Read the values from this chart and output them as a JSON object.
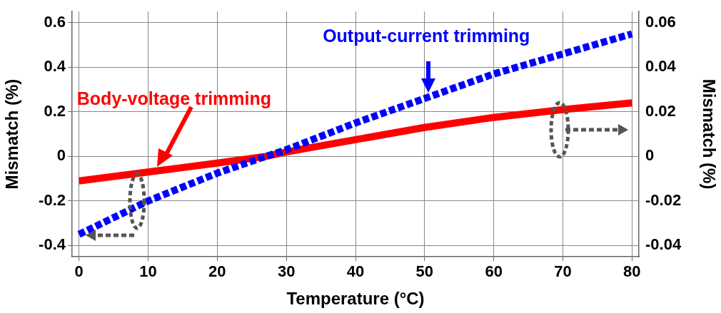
{
  "chart_data": {
    "type": "line",
    "xlabel": "Temperature (°C)",
    "ylabel": "Mismatch (%)",
    "y2label": "Mismatch (%)",
    "xlim": [
      -1,
      81
    ],
    "xticks": [
      0,
      10,
      20,
      30,
      40,
      50,
      60,
      70,
      80
    ],
    "ylim": [
      -0.45,
      0.65
    ],
    "yticks": [
      -0.4,
      -0.2,
      0,
      0.2,
      0.4,
      0.6
    ],
    "y2lim": [
      -0.045,
      0.065
    ],
    "y2ticks": [
      -0.04,
      -0.02,
      0,
      0.02,
      0.04,
      0.06
    ],
    "grid": true,
    "legend": false,
    "marker": "none",
    "series": [
      {
        "name": "Output-current trimming",
        "color": "#0000ff",
        "line_style": "dashed",
        "x": [
          0,
          10,
          20,
          27,
          30,
          40,
          50,
          60,
          70,
          80
        ],
        "values": [
          -0.35,
          -0.2,
          -0.075,
          0,
          0.03,
          0.15,
          0.26,
          0.37,
          0.46,
          0.55
        ]
      },
      {
        "name": "Body-voltage trimming",
        "color": "#ff0000",
        "line_style": "solid",
        "axis": "y2",
        "x": [
          0,
          10,
          20,
          27,
          30,
          40,
          50,
          60,
          70,
          80
        ],
        "values": [
          -0.011,
          -0.007,
          -0.003,
          0,
          0.002,
          0.0075,
          0.013,
          0.0175,
          0.021,
          0.024
        ]
      }
    ]
  }
}
